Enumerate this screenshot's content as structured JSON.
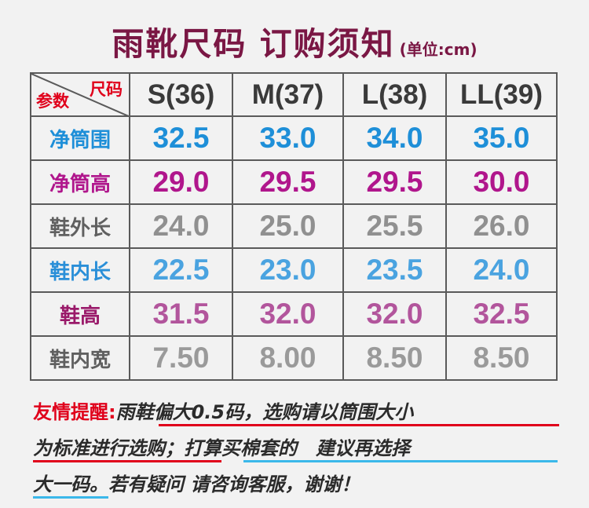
{
  "title": {
    "main": "雨靴尺码 订购须知",
    "unit": "(单位:cm)"
  },
  "corner": {
    "size": "尺码",
    "param": "参数"
  },
  "sizes": [
    "S(36)",
    "M(37)",
    "L(38)",
    "LL(39)"
  ],
  "rows": [
    {
      "label": "净筒围",
      "values": [
        "32.5",
        "33.0",
        "34.0",
        "35.0"
      ],
      "color": "#1e8fd8"
    },
    {
      "label": "净筒高",
      "values": [
        "29.0",
        "29.5",
        "29.5",
        "30.0"
      ],
      "color": "#b0168c"
    },
    {
      "label": "鞋外长",
      "values": [
        "24.0",
        "25.0",
        "25.5",
        "26.0"
      ],
      "color": "#909090"
    },
    {
      "label": "鞋内长",
      "values": [
        "22.5",
        "23.0",
        "23.5",
        "24.0"
      ],
      "color": "#4aa3e0"
    },
    {
      "label": "鞋高",
      "values": [
        "31.5",
        "32.0",
        "32.0",
        "32.5"
      ],
      "color": "#b2559c"
    },
    {
      "label": "鞋内宽",
      "values": [
        "7.50",
        "8.00",
        "8.50",
        "8.50"
      ],
      "color": "#9a9a9a"
    }
  ],
  "notes": {
    "prefix": "友情提醒:",
    "line1": "雨鞋偏大0.5码，选购请以筒围大小",
    "line2a": "为标准进行选购；",
    "line2b": "打算买棉套的　建议再选择",
    "line3a": "大一码",
    "line3b": "。若有疑问 请咨询客服，谢谢！"
  }
}
